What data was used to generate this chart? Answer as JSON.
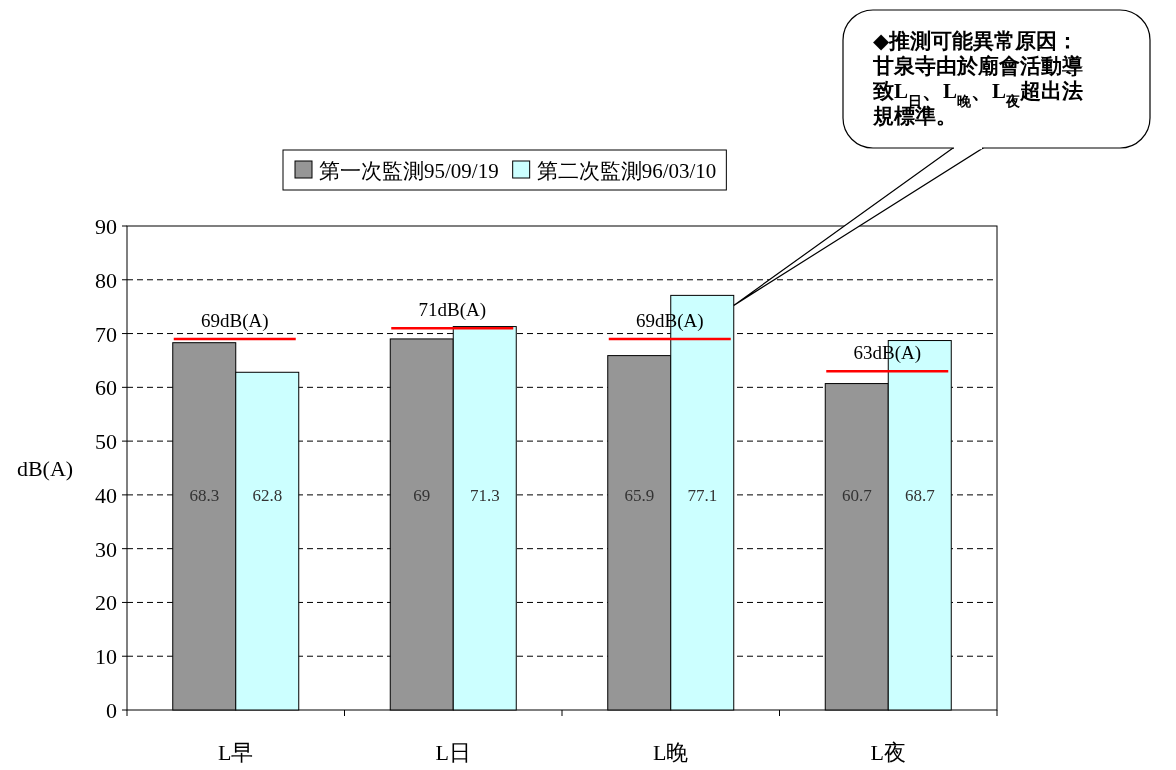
{
  "chart_data": {
    "type": "bar",
    "categories": [
      "L早",
      "L日",
      "L晚",
      "L夜"
    ],
    "series": [
      {
        "name": "第一次監測95/09/19",
        "color": "#969696",
        "values": [
          68.3,
          69,
          65.9,
          60.7
        ]
      },
      {
        "name": "第二次監測96/03/10",
        "color": "#ccffff",
        "values": [
          62.8,
          71.3,
          77.1,
          68.7
        ]
      }
    ],
    "ylabel": "dB(A)",
    "ylim": [
      0,
      90
    ],
    "yticks": [
      0,
      10,
      20,
      30,
      40,
      50,
      60,
      70,
      80,
      90
    ],
    "grid": "y",
    "legend": "top",
    "data_labels": true,
    "annotations": [
      {
        "text": "69dB(A)",
        "x": "L早",
        "y": 69
      },
      {
        "text": "71dB(A)",
        "x": "L日",
        "y": 71
      },
      {
        "text": "69dB(A)",
        "x": "L晚",
        "y": 69
      },
      {
        "text": "63dB(A)",
        "x": "L夜",
        "y": 63
      },
      "◆推測可能異常原因：甘泉寺由於廟會活動導致L$_{日}$、L$_{晚}$、L$_{夜}$超出法規標準。"
    ]
  }
}
